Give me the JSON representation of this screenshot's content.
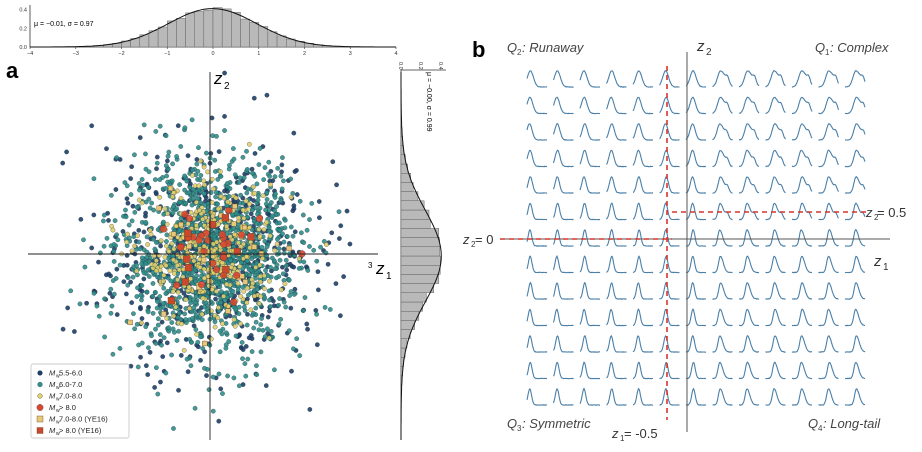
{
  "panel_a": {
    "label": "a",
    "top_hist_annotation": "μ = −0.01, σ = 0.97",
    "right_hist_annotation": "μ = −0.00, σ = 0.99",
    "z1_label": "z",
    "z1_sub": "1",
    "z2_label": "z",
    "z2_sub": "2",
    "axis_x_end_tick": "3",
    "legend": [
      {
        "prefix": "M",
        "sub": "w",
        "text": " 5.5-6.0",
        "marker": "circle",
        "color": "#1d3f66"
      },
      {
        "prefix": "M",
        "sub": "w",
        "text": " 6.0-7.0",
        "marker": "circle",
        "color": "#2f8f88"
      },
      {
        "prefix": "M",
        "sub": "w",
        "text": " 7.0-8.0",
        "marker": "circle",
        "color": "#e3cf6a"
      },
      {
        "prefix": "M",
        "sub": "w",
        "text": " > 8.0",
        "marker": "circle",
        "color": "#d9482e"
      },
      {
        "prefix": "M",
        "sub": "w",
        "text": " 7.0-8.0 (YE16)",
        "marker": "square",
        "color": "#e8c67a"
      },
      {
        "prefix": "M",
        "sub": "w",
        "text": " > 8.0 (YE16)",
        "marker": "square",
        "color": "#c9482e"
      }
    ]
  },
  "panel_b": {
    "label": "b",
    "q1": {
      "prefix": "Q",
      "sub": "1",
      "text": ": Complex"
    },
    "q2": {
      "prefix": "Q",
      "sub": "2",
      "text": ": Runaway"
    },
    "q3": {
      "prefix": "Q",
      "sub": "3",
      "text": ": Symmetric"
    },
    "q4": {
      "prefix": "Q",
      "sub": "4",
      "text": ": Long-tail"
    },
    "z1_label": "z",
    "z1_sub": "1",
    "z2_label": "z",
    "z2_sub": "2",
    "z2_zero_label": "z",
    "z2_zero_sub": "2",
    "z2_zero_value": " = 0",
    "z2_half_label": "z",
    "z2_half_sub": "2",
    "z2_half_value": " = 0.5",
    "z1_neg_label": "z",
    "z1_neg_sub": "1",
    "z1_neg_value": " = -0.5",
    "grid_rows": 13,
    "grid_cols": 13,
    "curve_color": "#4a7fa8",
    "dashed_color": "#d9342b"
  },
  "chart_data": [
    {
      "type": "bar",
      "title": "",
      "annotation": "μ = −0.01, σ = 0.97",
      "x_ticks": [
        "−4",
        "−3",
        "−2",
        "−1",
        "0",
        "1",
        "2",
        "3",
        "4"
      ],
      "y_ticks": [
        "0.0",
        "0.2",
        "0.4"
      ],
      "xlim": [
        -4,
        4
      ],
      "ylim": [
        0,
        0.45
      ],
      "fit": "normal",
      "mu": -0.01,
      "sigma": 0.97
    },
    {
      "type": "scatter",
      "title": "",
      "xlabel": "z1",
      "ylabel": "z2",
      "xlim": [
        -4,
        3.5
      ],
      "ylim": [
        -4,
        4
      ],
      "legend_position": "bottom-left",
      "series": [
        {
          "name": "Mw 5.5-6.0",
          "count": 550
        },
        {
          "name": "Mw 6.0-7.0",
          "count": 1300
        },
        {
          "name": "Mw 7.0-8.0",
          "count": 380
        },
        {
          "name": "Mw > 8.0",
          "count": 30
        },
        {
          "name": "Mw 7.0-8.0 (YE16)",
          "count": 25
        },
        {
          "name": "Mw > 8.0 (YE16)",
          "count": 10
        }
      ]
    },
    {
      "type": "bar",
      "title": "",
      "annotation": "μ = −0.00, σ = 0.99",
      "orientation": "horizontal",
      "x_ticks": [
        "0.0",
        "0.2",
        "0.4"
      ],
      "ylim": [
        -4,
        4
      ],
      "fit": "normal",
      "mu": -0.0,
      "sigma": 0.99
    },
    {
      "type": "line",
      "title": "",
      "grid_shape": [
        13,
        13
      ],
      "xlabel": "z1",
      "ylabel": "z2",
      "quadrants": [
        "Q1: Complex",
        "Q2: Runaway",
        "Q3: Symmetric",
        "Q4: Long-tail"
      ],
      "reference_lines": [
        "z2 = 0",
        "z2 = 0.5",
        "z1 = -0.5"
      ]
    }
  ]
}
